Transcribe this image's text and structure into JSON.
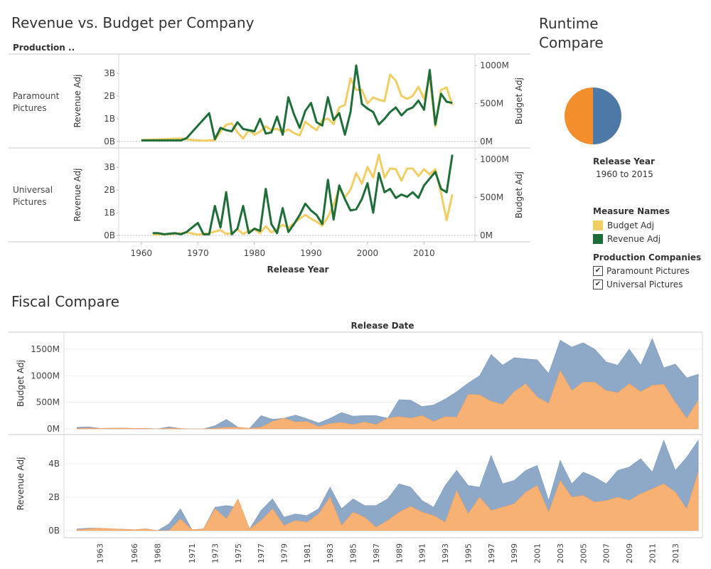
{
  "titles": {
    "revenue_vs_budget": "Revenue vs. Budget per Company",
    "runtime_compare": "Runtime Compare",
    "runtime_compare_line1": "Runtime",
    "runtime_compare_line2": "Compare",
    "fiscal_compare": "Fiscal Compare"
  },
  "top_chart": {
    "header": "Production ..",
    "xlabel": "Release Year",
    "ylabel_left": "Revenue Adj",
    "ylabel_right": "Budget Adj",
    "x_ticks": [
      "1960",
      "1970",
      "1980",
      "1990",
      "2000",
      "2010"
    ],
    "left_ticks": [
      "0B",
      "1B",
      "2B",
      "3B"
    ],
    "right_ticks": [
      "0M",
      "500M",
      "1000M"
    ],
    "row_labels": [
      [
        "Paramount",
        "Pictures"
      ],
      [
        "Universal",
        "Pictures"
      ]
    ]
  },
  "colors": {
    "budget": "#f1ce63",
    "revenue": "#1f6e3a",
    "orange": "#f28e2b",
    "blue": "#4e79a7",
    "area_orange": "#f7b172",
    "area_blue": "#8ea8c8"
  },
  "chart_data": [
    {
      "type": "line",
      "title": "Revenue vs. Budget per Company",
      "panel": "Paramount Pictures",
      "xlabel": "Release Year",
      "ylabel": "Revenue Adj",
      "y2label": "Budget Adj",
      "ylim": [
        0,
        3500000000
      ],
      "y2lim": [
        0,
        1100000000
      ],
      "series": [
        {
          "name": "Revenue Adj",
          "axis": "left",
          "x": [
            1960,
            1967,
            1968,
            1970,
            1972,
            1973,
            1974,
            1975,
            1976,
            1977,
            1978,
            1979,
            1980,
            1981,
            1982,
            1983,
            1984,
            1985,
            1986,
            1987,
            1988,
            1989,
            1990,
            1991,
            1992,
            1993,
            1994,
            1995,
            1996,
            1997,
            1998,
            1999,
            2000,
            2001,
            2002,
            2003,
            2004,
            2005,
            2006,
            2007,
            2008,
            2009,
            2010,
            2011,
            2012,
            2013,
            2014,
            2015
          ],
          "y": [
            50000000.0,
            50000000.0,
            150000000.0,
            700000000.0,
            1250000000.0,
            100000000.0,
            600000000.0,
            500000000.0,
            450000000.0,
            850000000.0,
            550000000.0,
            500000000.0,
            450000000.0,
            1000000000.0,
            350000000.0,
            400000000.0,
            1100000000.0,
            300000000.0,
            1950000000.0,
            1200000000.0,
            600000000.0,
            1350000000.0,
            1700000000.0,
            850000000.0,
            700000000.0,
            1950000000.0,
            950000000.0,
            1250000000.0,
            300000000.0,
            1300000000.0,
            3350000000.0,
            1650000000.0,
            1450000000.0,
            1300000000.0,
            750000000.0,
            1000000000.0,
            1300000000.0,
            1500000000.0,
            1150000000.0,
            1400000000.0,
            1500000000.0,
            1800000000.0,
            1400000000.0,
            3150000000.0,
            750000000.0,
            2100000000.0,
            1750000000.0,
            1700000000.0
          ]
        },
        {
          "name": "Budget Adj",
          "axis": "right",
          "x": [
            1960,
            1967,
            1969,
            1971,
            1973,
            1974,
            1975,
            1976,
            1977,
            1978,
            1979,
            1980,
            1981,
            1982,
            1983,
            1984,
            1985,
            1986,
            1987,
            1988,
            1989,
            1990,
            1991,
            1992,
            1993,
            1994,
            1995,
            1996,
            1997,
            1998,
            1999,
            2000,
            2001,
            2002,
            2003,
            2004,
            2005,
            2006,
            2007,
            2008,
            2009,
            2010,
            2011,
            2012,
            2013,
            2014,
            2015
          ],
          "y": [
            20,
            40,
            20,
            10,
            20,
            130,
            220,
            240,
            120,
            40,
            150,
            90,
            130,
            200,
            150,
            170,
            120,
            160,
            110,
            80,
            260,
            200,
            150,
            280,
            300,
            230,
            450,
            480,
            830,
            680,
            680,
            500,
            580,
            550,
            530,
            880,
            800,
            600,
            560,
            600,
            720,
            560,
            850,
            200,
            680,
            710,
            480
          ]
        }
      ]
    },
    {
      "type": "line",
      "title": "Revenue vs. Budget per Company",
      "panel": "Universal Pictures",
      "xlabel": "Release Year",
      "ylabel": "Revenue Adj",
      "y2label": "Budget Adj",
      "ylim": [
        0,
        3500000000
      ],
      "y2lim": [
        0,
        1100000000
      ],
      "series": [
        {
          "name": "Revenue Adj",
          "axis": "left",
          "x": [
            1962,
            1963,
            1964,
            1966,
            1967,
            1968,
            1970,
            1971,
            1972,
            1973,
            1974,
            1975,
            1976,
            1977,
            1978,
            1979,
            1980,
            1981,
            1982,
            1983,
            1984,
            1985,
            1986,
            1987,
            1988,
            1989,
            1990,
            1991,
            1992,
            1993,
            1994,
            1995,
            1996,
            1997,
            1998,
            1999,
            2000,
            2001,
            2002,
            2003,
            2004,
            2005,
            2006,
            2007,
            2008,
            2009,
            2010,
            2011,
            2012,
            2013,
            2014,
            2015
          ],
          "y": [
            100000000.0,
            100000000.0,
            50000000.0,
            100000000.0,
            50000000.0,
            150000000.0,
            550000000.0,
            50000000.0,
            50000000.0,
            1300000000.0,
            350000000.0,
            1900000000.0,
            50000000.0,
            300000000.0,
            1300000000.0,
            100000000.0,
            300000000.0,
            200000000.0,
            2050000000.0,
            500000000.0,
            100000000.0,
            1200000000.0,
            150000000.0,
            500000000.0,
            900000000.0,
            1400000000.0,
            1100000000.0,
            900000000.0,
            500000000.0,
            2450000000.0,
            700000000.0,
            2200000000.0,
            1600000000.0,
            1100000000.0,
            1150000000.0,
            1600000000.0,
            2300000000.0,
            1000000000.0,
            2750000000.0,
            1900000000.0,
            2050000000.0,
            1650000000.0,
            1800000000.0,
            1700000000.0,
            1900000000.0,
            1650000000.0,
            2200000000.0,
            2500000000.0,
            2800000000.0,
            2050000000.0,
            1900000000.0,
            3550000000.0
          ]
        },
        {
          "name": "Budget Adj",
          "axis": "right",
          "x": [
            1962,
            1966,
            1968,
            1970,
            1972,
            1974,
            1975,
            1976,
            1977,
            1978,
            1979,
            1980,
            1981,
            1982,
            1983,
            1984,
            1985,
            1986,
            1987,
            1988,
            1989,
            1990,
            1991,
            1992,
            1993,
            1994,
            1995,
            1996,
            1997,
            1998,
            1999,
            2000,
            2001,
            2002,
            2003,
            2004,
            2005,
            2006,
            2007,
            2008,
            2009,
            2010,
            2011,
            2012,
            2013,
            2014,
            2015
          ],
          "y": [
            10,
            20,
            40,
            10,
            30,
            70,
            20,
            30,
            80,
            20,
            60,
            80,
            30,
            120,
            40,
            80,
            140,
            100,
            160,
            220,
            270,
            220,
            180,
            130,
            240,
            400,
            620,
            500,
            600,
            820,
            680,
            900,
            760,
            1060,
            760,
            880,
            870,
            720,
            880,
            880,
            780,
            870,
            800,
            870,
            560,
            200,
            540
          ]
        }
      ]
    },
    {
      "type": "pie",
      "title": "Runtime Compare",
      "categories": [
        "Paramount Pictures",
        "Universal Pictures"
      ],
      "values": [
        50,
        50
      ]
    },
    {
      "type": "area",
      "title": "Fiscal Compare",
      "panel": "Budget Adj",
      "xlabel": "Release Date",
      "ylabel": "Budget Adj",
      "ylim": [
        0,
        1800
      ],
      "x": [
        1961,
        1962,
        1963,
        1964,
        1965,
        1966,
        1967,
        1968,
        1969,
        1970,
        1971,
        1972,
        1973,
        1974,
        1975,
        1976,
        1977,
        1978,
        1979,
        1980,
        1981,
        1982,
        1983,
        1984,
        1985,
        1986,
        1987,
        1988,
        1989,
        1990,
        1991,
        1992,
        1993,
        1994,
        1995,
        1996,
        1997,
        1998,
        1999,
        2000,
        2001,
        2002,
        2003,
        2004,
        2005,
        2006,
        2007,
        2008,
        2009,
        2010,
        2011,
        2012,
        2013,
        2014,
        2015
      ],
      "series": [
        {
          "name": "Orange",
          "values": [
            10,
            15,
            10,
            12,
            15,
            10,
            8,
            0,
            15,
            5,
            0,
            0,
            10,
            30,
            30,
            10,
            30,
            140,
            200,
            130,
            140,
            40,
            100,
            120,
            80,
            130,
            80,
            200,
            230,
            200,
            250,
            140,
            230,
            220,
            650,
            640,
            520,
            460,
            700,
            850,
            600,
            480,
            1100,
            720,
            880,
            880,
            720,
            680,
            850,
            700,
            820,
            840,
            500,
            200,
            540
          ]
        },
        {
          "name": "Blue",
          "values": [
            30,
            40,
            10,
            12,
            15,
            10,
            8,
            0,
            40,
            5,
            0,
            0,
            60,
            180,
            30,
            10,
            250,
            180,
            200,
            260,
            190,
            110,
            200,
            310,
            240,
            250,
            250,
            200,
            550,
            540,
            420,
            450,
            560,
            700,
            860,
            1000,
            1400,
            1200,
            1340,
            1320,
            1300,
            1040,
            1670,
            1540,
            1620,
            1500,
            1260,
            1200,
            1500,
            1200,
            1700,
            1150,
            1220,
            960,
            1030
          ]
        }
      ]
    },
    {
      "type": "area",
      "title": "Fiscal Compare",
      "panel": "Revenue Adj",
      "xlabel": "Release Date",
      "ylabel": "Revenue Adj",
      "ylim": [
        0,
        5.8
      ],
      "x": [
        1961,
        1962,
        1963,
        1964,
        1965,
        1966,
        1967,
        1968,
        1969,
        1970,
        1971,
        1972,
        1973,
        1974,
        1975,
        1976,
        1977,
        1978,
        1979,
        1980,
        1981,
        1982,
        1983,
        1984,
        1985,
        1986,
        1987,
        1988,
        1989,
        1990,
        1991,
        1992,
        1993,
        1994,
        1995,
        1996,
        1997,
        1998,
        1999,
        2000,
        2001,
        2002,
        2003,
        2004,
        2005,
        2006,
        2007,
        2008,
        2009,
        2010,
        2011,
        2012,
        2013,
        2014,
        2015
      ],
      "x_ticks": [
        "1963",
        "1966",
        "1968",
        "1971",
        "1973",
        "1975",
        "1977",
        "1979",
        "1981",
        "1983",
        "1985",
        "1987",
        "1989",
        "1991",
        "1993",
        "1995",
        "1997",
        "1999",
        "2001",
        "2003",
        "2005",
        "2007",
        "2009",
        "2011",
        "2013"
      ],
      "series": [
        {
          "name": "Orange",
          "values": [
            0.05,
            0.1,
            0.15,
            0.1,
            0.08,
            0.05,
            0.1,
            0.0,
            0.0,
            0.7,
            0.05,
            0.1,
            1.3,
            0.7,
            1.9,
            0.1,
            0.6,
            1.3,
            0.3,
            0.6,
            0.5,
            1.0,
            2.0,
            0.3,
            1.1,
            0.8,
            0.2,
            0.6,
            1.1,
            1.45,
            1.1,
            0.9,
            0.5,
            2.4,
            1.0,
            2.0,
            1.2,
            1.4,
            1.6,
            2.3,
            2.7,
            1.1,
            3.0,
            2.0,
            2.1,
            1.7,
            1.8,
            2.0,
            1.8,
            2.2,
            2.5,
            2.8,
            2.3,
            1.3,
            3.5
          ]
        },
        {
          "name": "Blue",
          "values": [
            0.1,
            0.15,
            0.15,
            0.1,
            0.08,
            0.05,
            0.1,
            0.0,
            0.4,
            1.3,
            0.05,
            0.1,
            1.4,
            1.5,
            1.4,
            0.1,
            1.2,
            1.9,
            0.8,
            1.0,
            0.9,
            1.3,
            2.6,
            1.3,
            1.9,
            1.5,
            1.5,
            1.9,
            2.8,
            2.6,
            1.8,
            1.4,
            2.7,
            3.6,
            2.7,
            2.6,
            4.5,
            2.8,
            3.0,
            3.6,
            3.9,
            1.8,
            4.2,
            2.8,
            3.5,
            3.2,
            2.8,
            3.6,
            3.8,
            4.3,
            3.5,
            5.4,
            3.6,
            4.4,
            5.4
          ]
        }
      ]
    }
  ],
  "runtime": {
    "filter_title": "Release Year",
    "filter_value": "1960 to 2015"
  },
  "legend": {
    "measure_title": "Measure Names",
    "items": [
      {
        "label": "Budget Adj",
        "color": "#f1ce63"
      },
      {
        "label": "Revenue Adj",
        "color": "#1f6e3a"
      }
    ],
    "companies_title": "Production Companies",
    "companies": [
      {
        "label": "Paramount Pictures",
        "checked": "✔"
      },
      {
        "label": "Universal Pictures",
        "checked": "✔"
      }
    ]
  },
  "fiscal": {
    "header": "Release Date",
    "budget_label": "Budget Adj",
    "revenue_label": "Revenue Adj",
    "budget_ticks": [
      "0M",
      "500M",
      "1000M",
      "1500M"
    ],
    "revenue_ticks": [
      "0B",
      "2B",
      "4B"
    ]
  }
}
